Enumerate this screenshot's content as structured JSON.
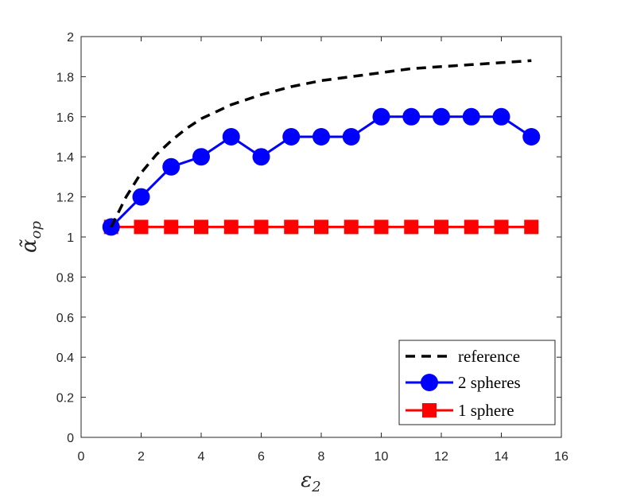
{
  "chart_data": {
    "type": "line",
    "title": "",
    "xlabel": {
      "symbol": "ε",
      "subscript": "2"
    },
    "ylabel": {
      "symbol": "α̃",
      "subscript": "op"
    },
    "xlim": [
      0,
      16
    ],
    "ylim": [
      0,
      2
    ],
    "xticks": [
      0,
      2,
      4,
      6,
      8,
      10,
      12,
      14,
      16
    ],
    "yticks": [
      0,
      0.2,
      0.4,
      0.6,
      0.8,
      1,
      1.2,
      1.4,
      1.6,
      1.8,
      2
    ],
    "xtick_labels": [
      "0",
      "2",
      "4",
      "6",
      "8",
      "10",
      "12",
      "14",
      "16"
    ],
    "ytick_labels": [
      "0",
      "0.2",
      "0.4",
      "0.6",
      "0.8",
      "1",
      "1.2",
      "1.4",
      "1.6",
      "1.8",
      "2"
    ],
    "grid": false,
    "legend_position": "bottom-right",
    "series": [
      {
        "name": "reference",
        "style": "dashed",
        "marker": "none",
        "color": "#000000",
        "x": [
          1,
          1.5,
          2,
          2.5,
          3,
          3.5,
          4,
          5,
          6,
          7,
          8,
          9,
          10,
          11,
          12,
          13,
          14,
          15
        ],
        "y": [
          1.05,
          1.2,
          1.32,
          1.41,
          1.48,
          1.54,
          1.59,
          1.66,
          1.71,
          1.75,
          1.78,
          1.8,
          1.82,
          1.84,
          1.85,
          1.86,
          1.87,
          1.88
        ]
      },
      {
        "name": "2 spheres",
        "style": "solid",
        "marker": "circle",
        "color": "#0000ff",
        "x": [
          1,
          2,
          3,
          4,
          5,
          6,
          7,
          8,
          9,
          10,
          11,
          12,
          13,
          14,
          15
        ],
        "y": [
          1.05,
          1.2,
          1.35,
          1.4,
          1.5,
          1.4,
          1.5,
          1.5,
          1.5,
          1.6,
          1.6,
          1.6,
          1.6,
          1.6,
          1.5
        ]
      },
      {
        "name": "1 sphere",
        "style": "solid",
        "marker": "square",
        "color": "#ff0000",
        "x": [
          1,
          2,
          3,
          4,
          5,
          6,
          7,
          8,
          9,
          10,
          11,
          12,
          13,
          14,
          15
        ],
        "y": [
          1.05,
          1.05,
          1.05,
          1.05,
          1.05,
          1.05,
          1.05,
          1.05,
          1.05,
          1.05,
          1.05,
          1.05,
          1.05,
          1.05,
          1.05
        ]
      }
    ],
    "legend_entries": [
      "reference",
      "2 spheres",
      "1 sphere"
    ]
  }
}
